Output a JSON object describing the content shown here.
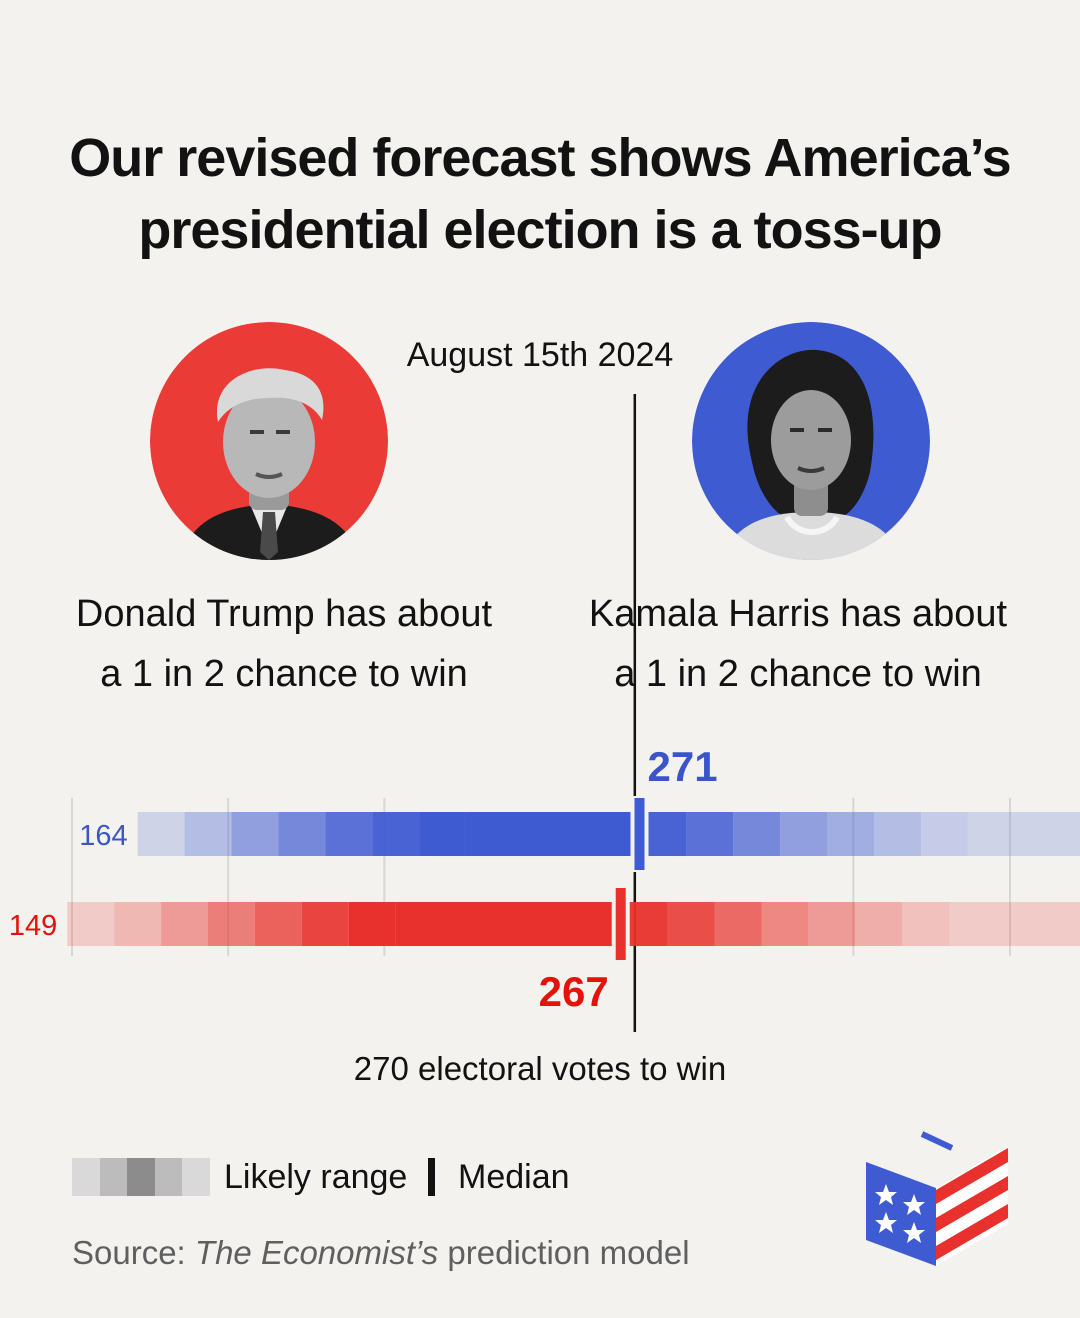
{
  "title_lines": [
    "Our revised forecast shows America’s",
    "presidential election is a toss-up"
  ],
  "date": "August 15th 2024",
  "candidates": {
    "trump": {
      "line1": "Donald Trump has about",
      "line2": "a 1 in 2 chance to win"
    },
    "harris": {
      "line1": "Kamala Harris has about",
      "line2": "a 1 in 2 chance to win"
    }
  },
  "threshold_label": "270 electoral votes to win",
  "legend": {
    "range_label": "Likely range",
    "median_label": "Median"
  },
  "source": {
    "prefix": "Source: ",
    "publication": "The Economist’s",
    "suffix": " prediction model"
  },
  "colors": {
    "background": "#f3f2ee",
    "republican": "#e3120b",
    "republican_bar": "#e8312c",
    "democrat": "#3b55c8",
    "democrat_bar": "#3f5bd2",
    "legend_grey": "#8c8c8c"
  },
  "icons": [
    "ballot-box-logo",
    "trump-portrait",
    "harris-portrait"
  ],
  "chart_data": {
    "type": "range",
    "x_axis": "electoral votes",
    "xlim": [
      140,
      400
    ],
    "threshold": 270,
    "series": [
      {
        "candidate": "Harris",
        "low": 164,
        "median": 271,
        "high": 389,
        "band_edges": [
          164,
          174,
          184,
          194,
          204,
          214,
          224,
          234,
          271,
          281,
          291,
          301,
          311,
          321,
          331,
          341,
          351,
          361,
          371,
          381,
          389
        ],
        "band_opacity": [
          0.2,
          0.35,
          0.55,
          0.7,
          0.85,
          0.95,
          1.0,
          1.0,
          0.95,
          0.85,
          0.7,
          0.55,
          0.45,
          0.35,
          0.25,
          0.2,
          0.2,
          0.2,
          0.2,
          0.2
        ]
      },
      {
        "candidate": "Trump",
        "low": 149,
        "median": 267,
        "high": 374,
        "band_edges": [
          149,
          159,
          169,
          179,
          189,
          199,
          209,
          219,
          267,
          277,
          287,
          297,
          307,
          317,
          327,
          337,
          347,
          357,
          367,
          374
        ],
        "band_opacity": [
          0.2,
          0.3,
          0.45,
          0.6,
          0.75,
          0.9,
          1.0,
          1.0,
          0.95,
          0.85,
          0.7,
          0.55,
          0.45,
          0.35,
          0.25,
          0.2,
          0.2,
          0.2,
          0.2
        ]
      }
    ]
  }
}
